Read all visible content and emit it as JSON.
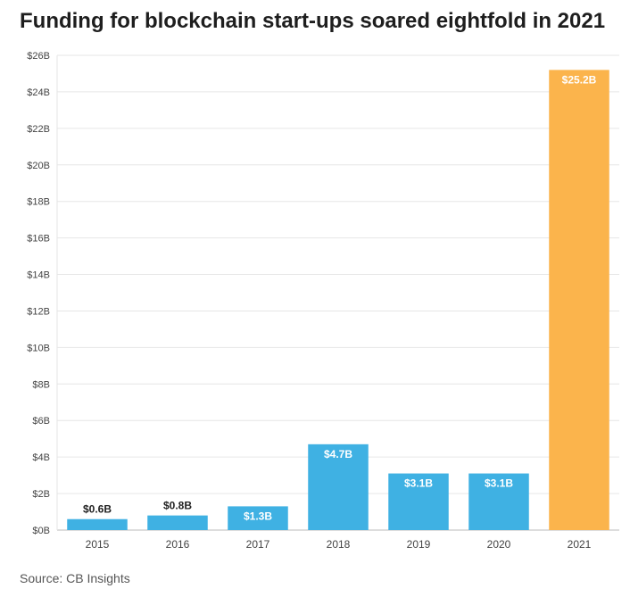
{
  "title": "Funding for blockchain start-ups soared eightfold in 2021",
  "source": "Source: CB Insights",
  "colors": {
    "default_bar": "#3fb1e3",
    "highlight_bar": "#fbb44c",
    "grid": "#e6e6e6"
  },
  "chart_data": {
    "type": "bar",
    "categories": [
      "2015",
      "2016",
      "2017",
      "2018",
      "2019",
      "2020",
      "2021"
    ],
    "values": [
      0.6,
      0.8,
      1.3,
      4.7,
      3.1,
      3.1,
      25.2
    ],
    "value_labels": [
      "$0.6B",
      "$0.8B",
      "$1.3B",
      "$4.7B",
      "$3.1B",
      "$3.1B",
      "$25.2B"
    ],
    "highlight_index": 6,
    "ylim": [
      0,
      26
    ],
    "yticks": [
      0,
      2,
      4,
      6,
      8,
      10,
      12,
      14,
      16,
      18,
      20,
      22,
      24,
      26
    ],
    "ytick_labels": [
      "$0B",
      "$2B",
      "$4B",
      "$6B",
      "$8B",
      "$10B",
      "$12B",
      "$14B",
      "$16B",
      "$18B",
      "$20B",
      "$22B",
      "$24B",
      "$26B"
    ],
    "xlabel": "",
    "ylabel": "",
    "grid": true
  }
}
